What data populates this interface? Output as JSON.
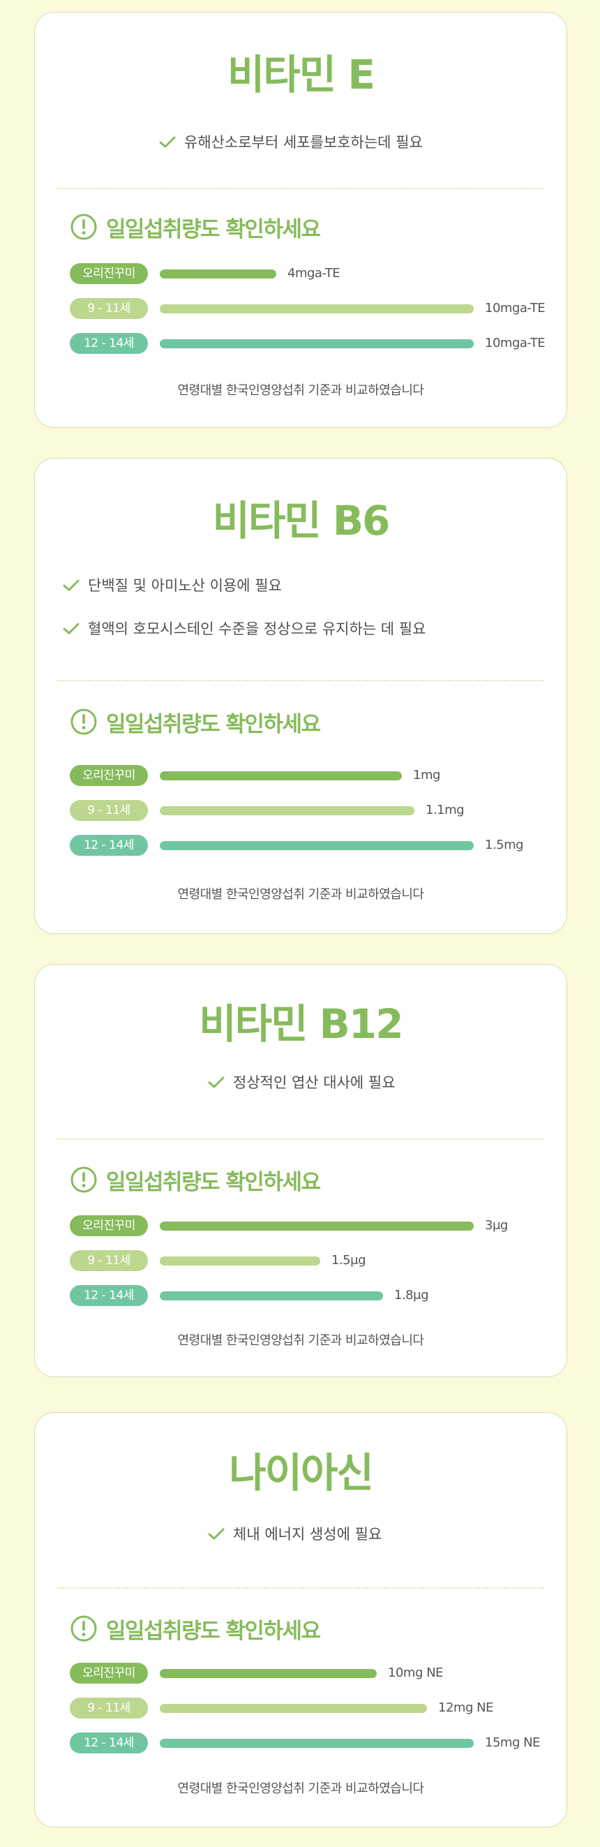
{
  "colors": {
    "original": "#86bb5b",
    "age_9_11": "#bcd78e",
    "age_12_14": "#71c6a2",
    "accent": "#86bb5b"
  },
  "common": {
    "section_title": "일일섭취량도 확인하세요",
    "footnote": "연령대별 한국인영양섭취 기준과 비교하였습니다",
    "labels": [
      "오리진꾸미",
      "9 - 11세",
      "12 - 14세"
    ],
    "icons": [
      "check-icon",
      "exclamation-circle-icon"
    ]
  },
  "cards": [
    {
      "title": "비타민 E",
      "benefits": [
        "유해산소로부터 세포를보호하는데 필요"
      ],
      "rows": [
        {
          "value": "4mga-TE",
          "fraction": 0.37
        },
        {
          "value": "10mga-TE",
          "fraction": 1.0
        },
        {
          "value": "10mga-TE",
          "fraction": 1.0
        }
      ]
    },
    {
      "title": "비타민 B6",
      "benefits": [
        "단백질 및 아미노산 이용에 필요",
        "혈액의 호모시스테인 수준을 정상으로 유지하는 데 필요"
      ],
      "rows": [
        {
          "value": "1mg",
          "fraction": 0.77
        },
        {
          "value": "1.1mg",
          "fraction": 0.81
        },
        {
          "value": "1.5mg",
          "fraction": 1.0
        }
      ]
    },
    {
      "title": "비타민 B12",
      "benefits": [
        "정상적인 엽산 대사에 필요"
      ],
      "rows": [
        {
          "value": "3μg",
          "fraction": 1.0
        },
        {
          "value": "1.5μg",
          "fraction": 0.51
        },
        {
          "value": "1.8μg",
          "fraction": 0.71
        }
      ]
    },
    {
      "title": "나이아신",
      "benefits": [
        "체내 에너지 생성에 필요"
      ],
      "rows": [
        {
          "value": "10mg NE",
          "fraction": 0.69
        },
        {
          "value": "12mg NE",
          "fraction": 0.85
        },
        {
          "value": "15mg NE",
          "fraction": 1.0
        }
      ]
    }
  ]
}
